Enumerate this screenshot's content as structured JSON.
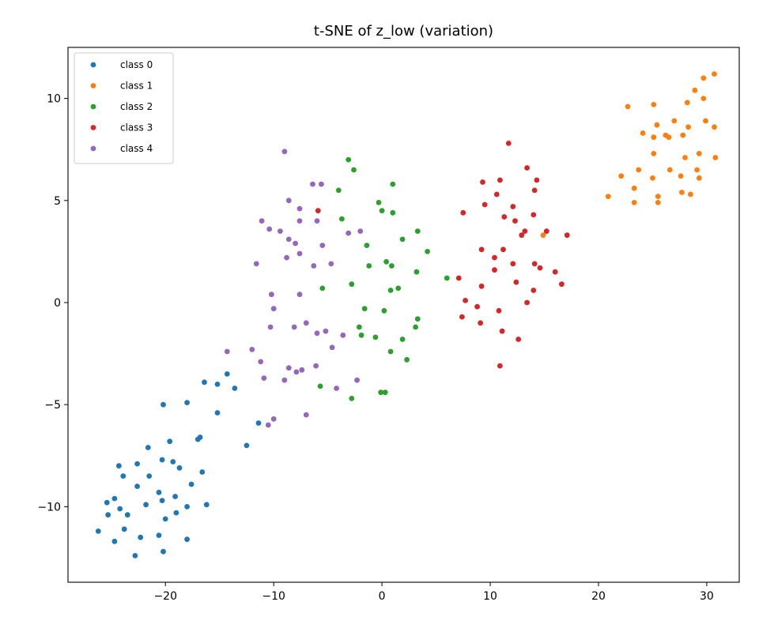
{
  "chart_data": {
    "type": "scatter",
    "title": "t-SNE of z_low (variation)",
    "xlabel": "",
    "ylabel": "",
    "xlim": [
      -29,
      33
    ],
    "ylim": [
      -13.7,
      12.5
    ],
    "xticks": [
      -20,
      -10,
      0,
      10,
      20,
      30
    ],
    "yticks": [
      -10,
      -5,
      0,
      5,
      10
    ],
    "xtick_labels": [
      "−20",
      "−10",
      "0",
      "10",
      "20",
      "30"
    ],
    "ytick_labels": [
      "−10",
      "−5",
      "0",
      "5",
      "10"
    ],
    "grid": false,
    "legend_position": "top-left",
    "series": [
      {
        "name": "class 0",
        "color": "#1f77b4",
        "points": [
          [
            -20.2,
            -5.0
          ],
          [
            -18.0,
            -4.9
          ],
          [
            -16.4,
            -3.9
          ],
          [
            -15.2,
            -4.0
          ],
          [
            -14.3,
            -3.5
          ],
          [
            -13.6,
            -4.2
          ],
          [
            -15.2,
            -5.4
          ],
          [
            -11.4,
            -5.9
          ],
          [
            -12.5,
            -7.0
          ],
          [
            -16.8,
            -6.6
          ],
          [
            -17.0,
            -6.7
          ],
          [
            -19.6,
            -6.8
          ],
          [
            -21.6,
            -7.1
          ],
          [
            -16.6,
            -8.3
          ],
          [
            -20.3,
            -7.7
          ],
          [
            -19.3,
            -7.8
          ],
          [
            -18.7,
            -8.1
          ],
          [
            -22.6,
            -7.9
          ],
          [
            -24.3,
            -8.0
          ],
          [
            -23.9,
            -8.5
          ],
          [
            -21.5,
            -8.5
          ],
          [
            -17.6,
            -8.9
          ],
          [
            -22.6,
            -9.0
          ],
          [
            -20.6,
            -9.3
          ],
          [
            -19.1,
            -9.5
          ],
          [
            -24.7,
            -9.6
          ],
          [
            -25.4,
            -9.8
          ],
          [
            -20.3,
            -9.7
          ],
          [
            -21.8,
            -9.9
          ],
          [
            -24.2,
            -10.1
          ],
          [
            -18.0,
            -10.0
          ],
          [
            -16.2,
            -9.9
          ],
          [
            -19.0,
            -10.3
          ],
          [
            -23.5,
            -10.4
          ],
          [
            -25.3,
            -10.4
          ],
          [
            -20.0,
            -10.6
          ],
          [
            -23.8,
            -11.1
          ],
          [
            -26.2,
            -11.2
          ],
          [
            -22.3,
            -11.5
          ],
          [
            -20.6,
            -11.4
          ],
          [
            -24.7,
            -11.7
          ],
          [
            -18.0,
            -11.6
          ],
          [
            -20.2,
            -12.2
          ],
          [
            -22.8,
            -12.4
          ]
        ]
      },
      {
        "name": "class 1",
        "color": "#ff7f0e",
        "points": [
          [
            30.7,
            11.2
          ],
          [
            29.7,
            11.0
          ],
          [
            28.9,
            10.4
          ],
          [
            29.7,
            10.0
          ],
          [
            28.2,
            9.8
          ],
          [
            25.1,
            9.7
          ],
          [
            22.7,
            9.6
          ],
          [
            29.9,
            8.9
          ],
          [
            27.0,
            8.9
          ],
          [
            25.4,
            8.7
          ],
          [
            28.3,
            8.6
          ],
          [
            30.7,
            8.6
          ],
          [
            26.2,
            8.2
          ],
          [
            24.1,
            8.3
          ],
          [
            27.8,
            8.2
          ],
          [
            25.1,
            8.1
          ],
          [
            26.5,
            8.1
          ],
          [
            29.3,
            7.3
          ],
          [
            25.1,
            7.3
          ],
          [
            28.0,
            7.1
          ],
          [
            30.8,
            7.1
          ],
          [
            23.7,
            6.5
          ],
          [
            26.6,
            6.5
          ],
          [
            29.1,
            6.5
          ],
          [
            25.0,
            6.1
          ],
          [
            27.6,
            6.2
          ],
          [
            22.1,
            6.2
          ],
          [
            29.3,
            6.1
          ],
          [
            23.3,
            5.6
          ],
          [
            27.7,
            5.4
          ],
          [
            28.5,
            5.3
          ],
          [
            25.5,
            5.2
          ],
          [
            20.9,
            5.2
          ],
          [
            25.5,
            4.9
          ],
          [
            23.3,
            4.9
          ],
          [
            14.9,
            3.3
          ]
        ]
      },
      {
        "name": "class 2",
        "color": "#2ca02c",
        "points": [
          [
            -3.1,
            7.0
          ],
          [
            -2.6,
            6.5
          ],
          [
            1.0,
            5.8
          ],
          [
            -4.0,
            5.5
          ],
          [
            -0.3,
            4.9
          ],
          [
            0.0,
            4.5
          ],
          [
            1.0,
            4.4
          ],
          [
            -3.7,
            4.1
          ],
          [
            3.3,
            3.5
          ],
          [
            1.9,
            3.1
          ],
          [
            -1.4,
            2.8
          ],
          [
            4.2,
            2.5
          ],
          [
            0.4,
            2.0
          ],
          [
            -1.2,
            1.8
          ],
          [
            0.9,
            1.8
          ],
          [
            3.2,
            1.5
          ],
          [
            6.0,
            1.2
          ],
          [
            -2.8,
            0.9
          ],
          [
            -5.5,
            0.7
          ],
          [
            1.5,
            0.7
          ],
          [
            0.8,
            0.6
          ],
          [
            -1.6,
            -0.3
          ],
          [
            0.2,
            -0.4
          ],
          [
            3.3,
            -0.8
          ],
          [
            -2.1,
            -1.2
          ],
          [
            3.1,
            -1.2
          ],
          [
            -0.6,
            -1.7
          ],
          [
            -1.9,
            -1.6
          ],
          [
            1.9,
            -1.8
          ],
          [
            0.8,
            -2.4
          ],
          [
            2.3,
            -2.8
          ],
          [
            -5.7,
            -4.1
          ],
          [
            0.3,
            -4.4
          ],
          [
            -0.1,
            -4.4
          ],
          [
            -2.8,
            -4.7
          ]
        ]
      },
      {
        "name": "class 3",
        "color": "#d62728",
        "points": [
          [
            11.7,
            7.8
          ],
          [
            13.4,
            6.6
          ],
          [
            14.3,
            6.0
          ],
          [
            9.3,
            5.9
          ],
          [
            10.9,
            6.0
          ],
          [
            14.1,
            5.5
          ],
          [
            10.6,
            5.3
          ],
          [
            9.5,
            4.8
          ],
          [
            12.1,
            4.7
          ],
          [
            7.5,
            4.4
          ],
          [
            11.3,
            4.2
          ],
          [
            12.3,
            4.0
          ],
          [
            14.0,
            4.3
          ],
          [
            -5.9,
            4.5
          ],
          [
            13.2,
            3.5
          ],
          [
            15.2,
            3.5
          ],
          [
            12.9,
            3.3
          ],
          [
            17.1,
            3.3
          ],
          [
            9.2,
            2.6
          ],
          [
            11.2,
            2.6
          ],
          [
            10.4,
            2.2
          ],
          [
            7.1,
            1.2
          ],
          [
            12.1,
            1.9
          ],
          [
            14.1,
            1.9
          ],
          [
            10.4,
            1.6
          ],
          [
            14.6,
            1.7
          ],
          [
            16.0,
            1.5
          ],
          [
            12.4,
            1.0
          ],
          [
            9.2,
            0.8
          ],
          [
            16.6,
            0.9
          ],
          [
            14.0,
            0.6
          ],
          [
            7.7,
            0.1
          ],
          [
            13.4,
            0.0
          ],
          [
            8.8,
            -0.2
          ],
          [
            10.8,
            -0.4
          ],
          [
            7.4,
            -0.7
          ],
          [
            9.1,
            -1.0
          ],
          [
            11.1,
            -1.4
          ],
          [
            12.6,
            -1.8
          ],
          [
            10.9,
            -3.1
          ]
        ]
      },
      {
        "name": "class 4",
        "color": "#9467bd",
        "points": [
          [
            -9.0,
            7.4
          ],
          [
            -5.6,
            5.8
          ],
          [
            -6.4,
            5.8
          ],
          [
            -8.6,
            5.0
          ],
          [
            -7.6,
            4.6
          ],
          [
            -11.1,
            4.0
          ],
          [
            -7.6,
            4.0
          ],
          [
            -6.0,
            4.0
          ],
          [
            -10.4,
            3.6
          ],
          [
            -9.4,
            3.5
          ],
          [
            -2.0,
            3.5
          ],
          [
            -3.1,
            3.4
          ],
          [
            -8.6,
            3.1
          ],
          [
            -8.0,
            2.9
          ],
          [
            -5.5,
            2.8
          ],
          [
            -7.6,
            2.4
          ],
          [
            -8.8,
            2.2
          ],
          [
            -11.6,
            1.9
          ],
          [
            -6.3,
            1.8
          ],
          [
            -4.7,
            1.9
          ],
          [
            -10.2,
            0.4
          ],
          [
            -7.6,
            0.4
          ],
          [
            -10.0,
            -0.3
          ],
          [
            -7.0,
            -1.0
          ],
          [
            -10.3,
            -1.2
          ],
          [
            -8.1,
            -1.2
          ],
          [
            -6.0,
            -1.5
          ],
          [
            -5.2,
            -1.4
          ],
          [
            -3.6,
            -1.6
          ],
          [
            -4.6,
            -2.2
          ],
          [
            -14.3,
            -2.4
          ],
          [
            -12.0,
            -2.3
          ],
          [
            -11.2,
            -2.9
          ],
          [
            -8.6,
            -3.2
          ],
          [
            -6.1,
            -3.1
          ],
          [
            -7.9,
            -3.4
          ],
          [
            -7.4,
            -3.3
          ],
          [
            -10.9,
            -3.7
          ],
          [
            -9.0,
            -3.8
          ],
          [
            -2.3,
            -3.8
          ],
          [
            -4.2,
            -4.2
          ],
          [
            -7.0,
            -5.5
          ],
          [
            -10.0,
            -5.7
          ],
          [
            -10.5,
            -6.0
          ]
        ]
      }
    ]
  }
}
